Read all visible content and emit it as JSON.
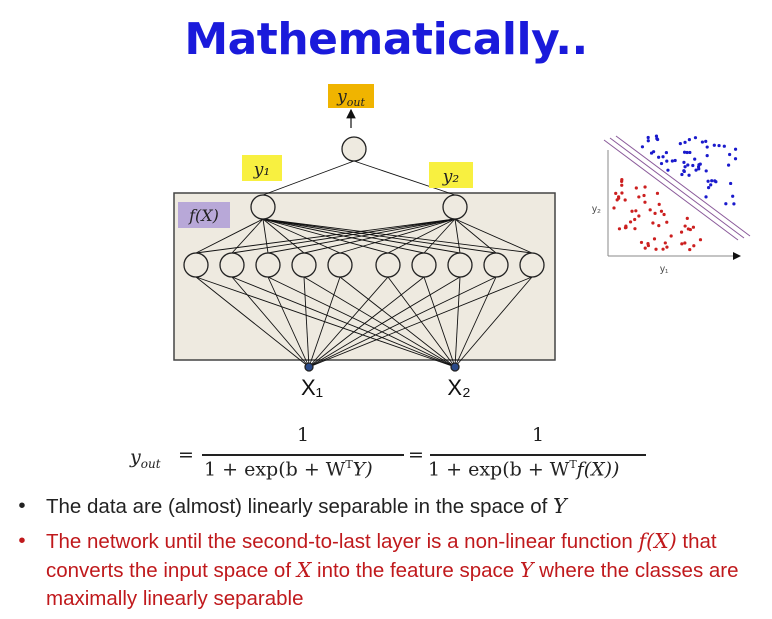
{
  "title": "Mathematically..",
  "diagram": {
    "output_label": "y_out",
    "hidden_label_1": "y₁",
    "hidden_label_2": "y₂",
    "feature_box_label": "f(X)",
    "input_label_1": "X₁",
    "input_label_2": "X₂",
    "colors": {
      "box_fill": "#eeeae0",
      "output_label_bg": "#f0b400",
      "hidden_label_bg": "#f8f040",
      "feature_label_bg": "#b8a8d8",
      "class_red": "#cc1f1f",
      "class_blue": "#1a1acc",
      "separator": "#8a5a9a"
    }
  },
  "scatter": {
    "ylabel": "y₂",
    "xlabel": "y₁"
  },
  "formula": {
    "lhs": "y",
    "lhs_sub": "out",
    "num1": "1",
    "num2": "1",
    "den1": "1 + exp(b + W",
    "den1_sup": "T",
    "den1_end": "Y)",
    "den2": "1 + exp(b + W",
    "den2_sup": "T",
    "den2_end": "f(X))"
  },
  "bullets": [
    {
      "before": "The data are (almost) linearly separable in the space of ",
      "var": "Y",
      "color": "#222222"
    },
    {
      "text1": "The network until the second-to-last layer is a non-linear function ",
      "var1": "f(X)",
      "text2": " that converts the input space of ",
      "var2": "X",
      "text3": " into the feature space ",
      "var3": "Y",
      "text4": " where the classes are maximally linearly separable",
      "color": "#c0191c"
    }
  ]
}
